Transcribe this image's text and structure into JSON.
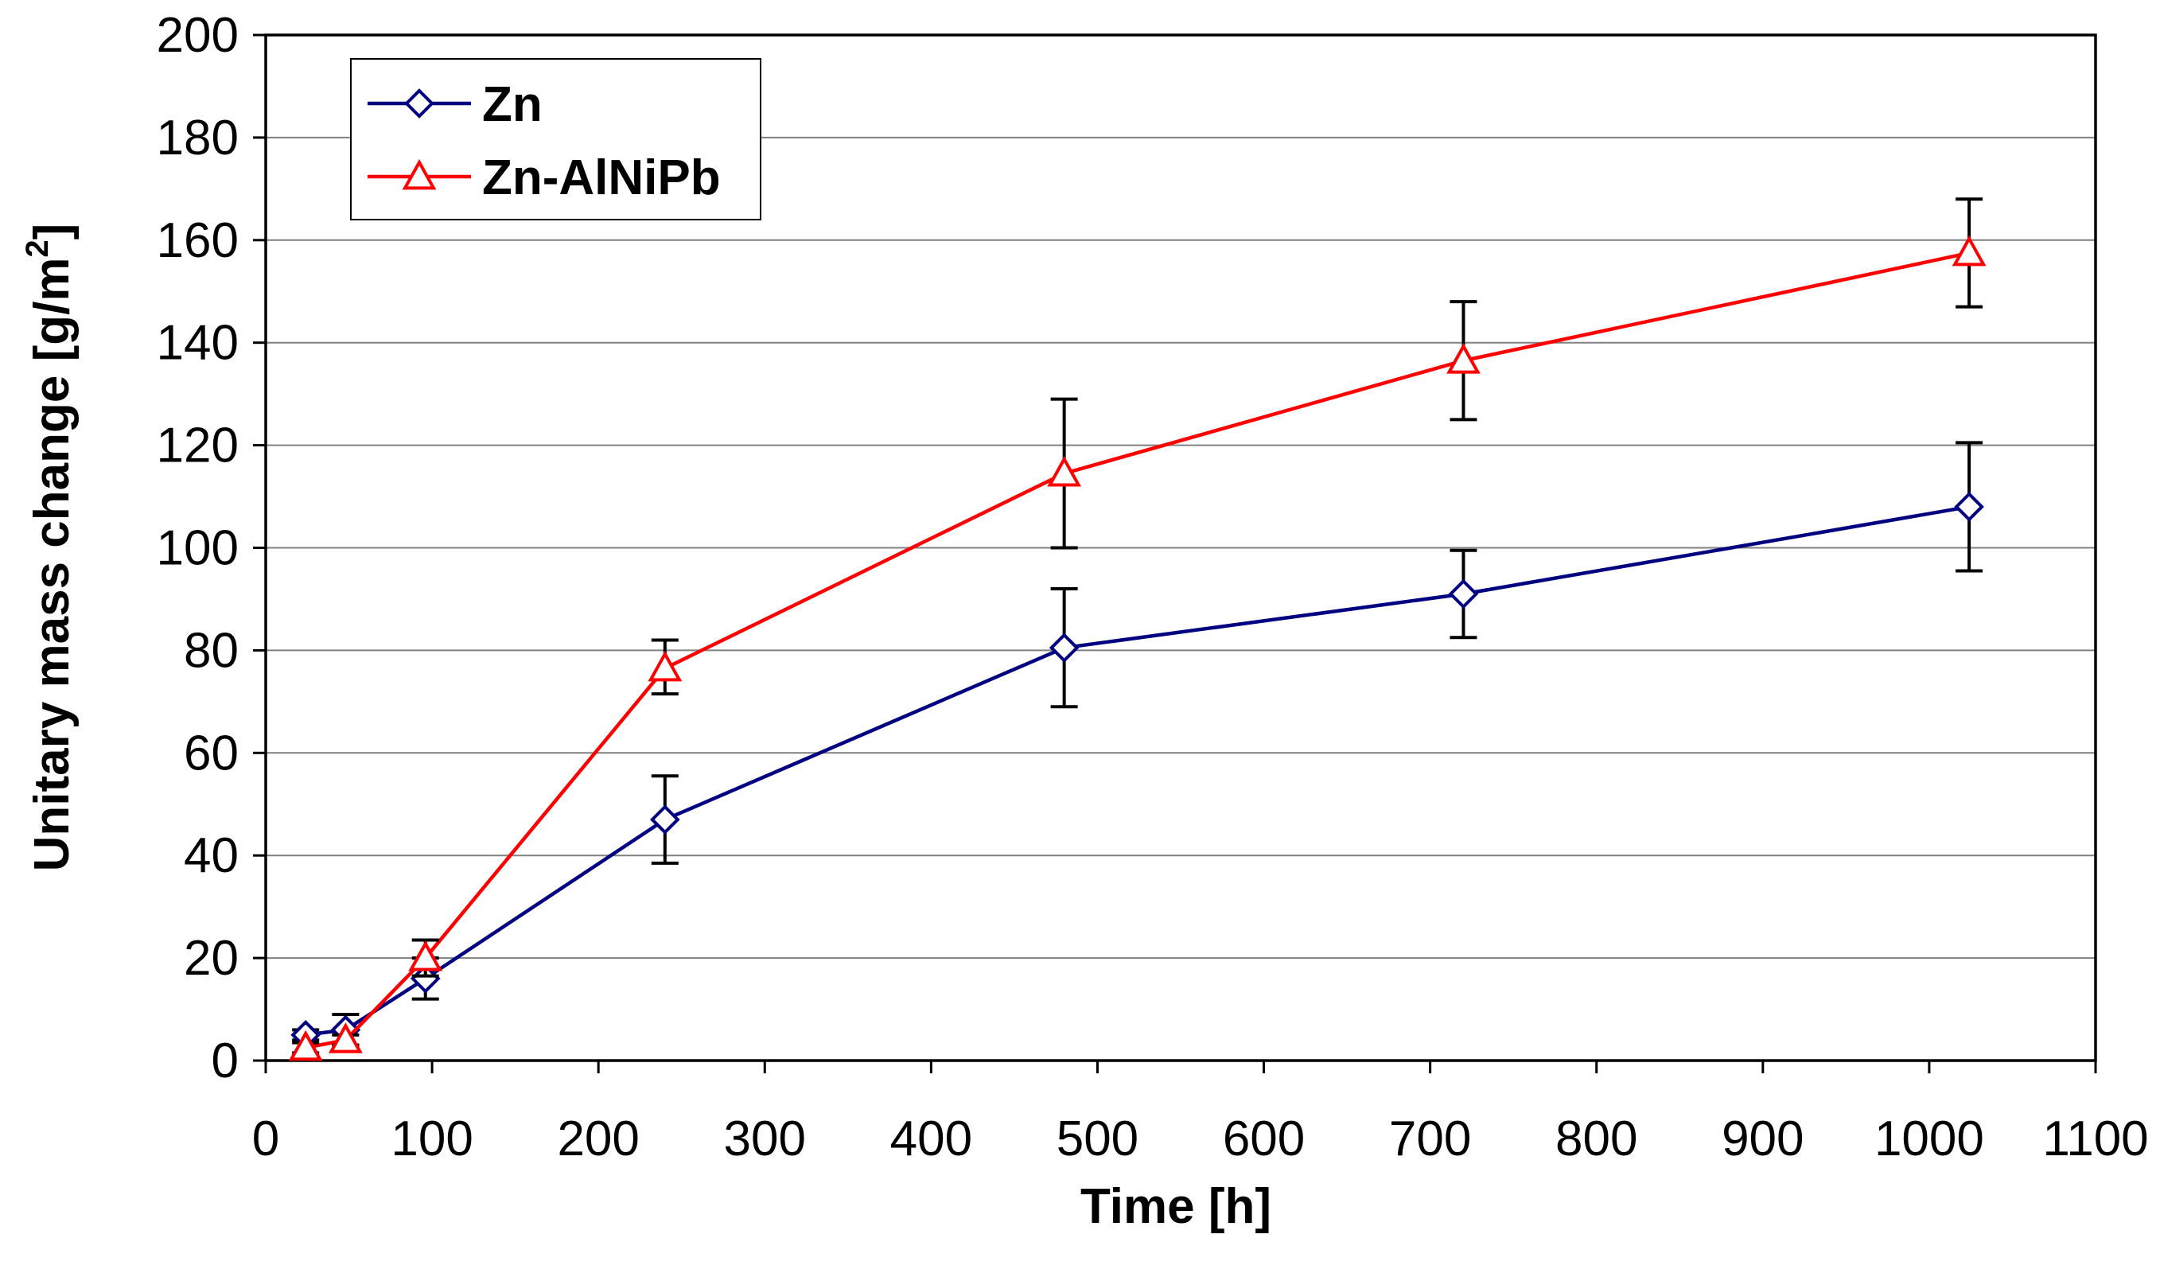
{
  "chart_data": {
    "type": "line",
    "title": "",
    "xlabel": "Time [h]",
    "ylabel": "Unitary mass change [g/m",
    "ylabel_superscript": "2",
    "ylabel_suffix": "]",
    "xlim": [
      0,
      1100
    ],
    "ylim": [
      0,
      200
    ],
    "x_ticks": [
      0,
      100,
      200,
      300,
      400,
      500,
      600,
      700,
      800,
      900,
      1000,
      1100
    ],
    "y_ticks": [
      0,
      20,
      40,
      60,
      80,
      100,
      120,
      140,
      160,
      180,
      200
    ],
    "grid": "horizontal",
    "legend_position": "top-left",
    "series": [
      {
        "name": "Zn",
        "color": "#000080",
        "marker": "diamond",
        "x": [
          24,
          48,
          96,
          240,
          480,
          720,
          1024
        ],
        "y": [
          5,
          6,
          16,
          47,
          80.5,
          91,
          108
        ],
        "err_low": [
          1,
          3,
          4,
          8.5,
          11.5,
          8.5,
          12.5
        ],
        "err_high": [
          1,
          3,
          4,
          8.5,
          11.5,
          8.5,
          12.5
        ]
      },
      {
        "name": "Zn-AlNiPb",
        "color": "#ff0000",
        "marker": "triangle",
        "x": [
          24,
          48,
          96,
          240,
          480,
          720,
          1024
        ],
        "y": [
          2.5,
          4,
          20,
          76.5,
          114.5,
          136.5,
          157.5
        ],
        "err_low": [
          1,
          1,
          3.5,
          5,
          14.5,
          11.5,
          10.5
        ],
        "err_high": [
          1,
          1,
          3.5,
          5.5,
          14.5,
          11.5,
          10.5
        ]
      }
    ]
  }
}
